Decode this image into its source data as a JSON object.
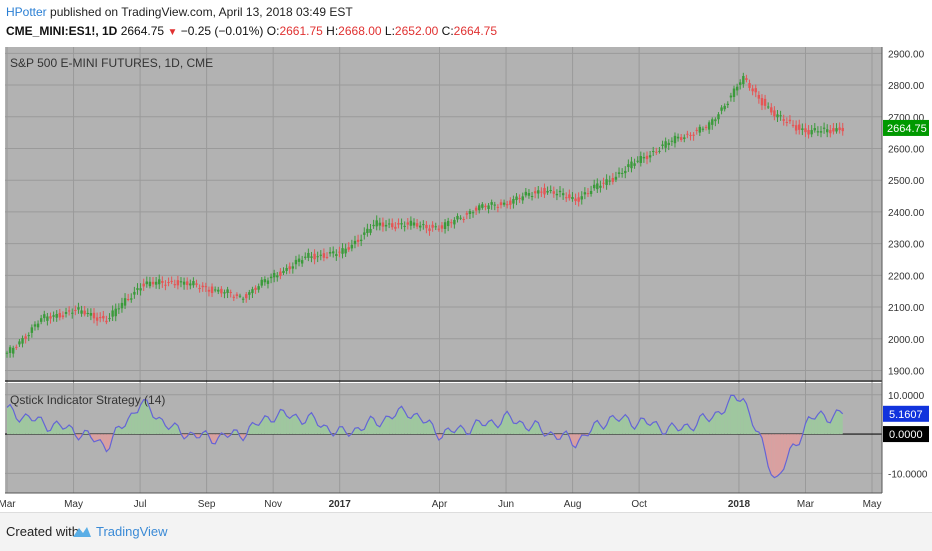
{
  "header": {
    "author": "HPotter",
    "published": " published on TradingView.com, April 13, 2018 03:49 EST",
    "symbol": "CME_MINI:ES1!, 1D",
    "last": "2664.75",
    "change": "−0.25 (−0.01%)",
    "o_label": "O:",
    "o_value": "2661.75",
    "h_label": "H:",
    "h_value": "2668.00",
    "l_label": "L:",
    "l_value": "2652.00",
    "c_label": "C:",
    "c_value": "2664.75"
  },
  "footer": {
    "created_with": "Created with",
    "brand": "TradingView"
  },
  "colors": {
    "background": "#b2b2b2",
    "up": "#3b9a3b",
    "down": "#e55555",
    "osc_line": "#6464d6",
    "last_price_badge": "#009900",
    "osc_badge": "#1133dd"
  },
  "chart_data": [
    {
      "type": "candlestick",
      "title": "S&P 500 E-MINI FUTURES, 1D, CME",
      "ylim": [
        1870,
        2920
      ],
      "y_ticks": [
        "1900.00",
        "2000.00",
        "2100.00",
        "2200.00",
        "2300.00",
        "2400.00",
        "2500.00",
        "2600.00",
        "2700.00",
        "2800.00",
        "2900.00"
      ],
      "x_ticks": [
        "Mar",
        "May",
        "Jul",
        "Sep",
        "Nov",
        "2017",
        "Apr",
        "Jun",
        "Aug",
        "Oct",
        "2018",
        "Mar",
        "May"
      ],
      "last_price_label": "2664.75",
      "x": [
        "2016-03",
        "2016-04",
        "2016-05",
        "2016-06",
        "2016-07",
        "2016-08",
        "2016-09",
        "2016-10",
        "2016-11",
        "2016-12",
        "2017-01",
        "2017-02",
        "2017-03",
        "2017-04",
        "2017-05",
        "2017-06",
        "2017-07",
        "2017-08",
        "2017-09",
        "2017-10",
        "2017-11",
        "2017-12",
        "2018-01",
        "2018-02",
        "2018-03",
        "2018-04"
      ],
      "close": [
        1950,
        2060,
        2090,
        2060,
        2170,
        2180,
        2160,
        2130,
        2200,
        2260,
        2270,
        2360,
        2360,
        2350,
        2410,
        2430,
        2470,
        2440,
        2500,
        2570,
        2630,
        2670,
        2820,
        2700,
        2650,
        2664.75
      ]
    },
    {
      "type": "line",
      "title": "Qstick Indicator Strategy (14)",
      "ylim": [
        -15,
        13
      ],
      "y_ticks": [
        "10.0000",
        "0.0000",
        "-10.0000"
      ],
      "last_value_label": "5.1607",
      "zero_label": "0.0000",
      "x": [
        "2016-03",
        "2016-04",
        "2016-05",
        "2016-06",
        "2016-07",
        "2016-08",
        "2016-09",
        "2016-10",
        "2016-11",
        "2016-12",
        "2017-01",
        "2017-02",
        "2017-03",
        "2017-04",
        "2017-05",
        "2017-06",
        "2017-07",
        "2017-08",
        "2017-09",
        "2017-10",
        "2017-11",
        "2017-12",
        "2018-01",
        "2018-02",
        "2018-03",
        "2018-04"
      ],
      "values": [
        6,
        3,
        1,
        -3,
        8,
        1,
        -1,
        0,
        5,
        4,
        0,
        3,
        6,
        0,
        2,
        4,
        1,
        -2,
        4,
        3,
        1,
        4,
        10,
        -12,
        4,
        5.16
      ]
    }
  ]
}
